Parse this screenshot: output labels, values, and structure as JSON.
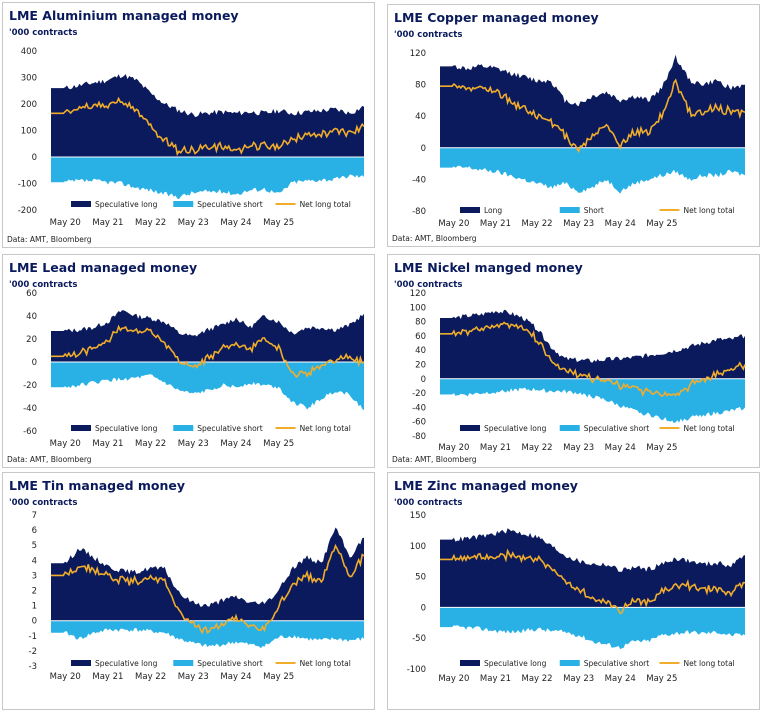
{
  "colors": {
    "long": "#0a1a5c",
    "short": "#29b1e6",
    "net": "#f0ac2c"
  },
  "x_labels": [
    "May 20",
    "May 21",
    "May 22",
    "May 23",
    "May 24",
    "May 25"
  ],
  "source": "Data: AMT, Bloomberg",
  "charts": [
    {
      "title": "LME Aluminium managed money",
      "unit": "'000 contracts",
      "source": "Data: AMT, Bloomberg",
      "legend": [
        "Speculative long",
        "Speculative short",
        "Net long total"
      ]
    },
    {
      "title": "LME Copper managed money",
      "unit": "'000 contracts",
      "source": "Data: AMT, Bloomberg",
      "legend": [
        "Long",
        "Short",
        "Net long total"
      ]
    },
    {
      "title": "LME Lead managed money",
      "unit": "'000 contracts",
      "source": "Data: AMT, Bloomberg",
      "legend": [
        "Speculative long",
        "Speculative short",
        "Net long total"
      ]
    },
    {
      "title": "LME Nickel manged money",
      "unit": "'000 contracts",
      "source": "Data: AMT, Bloomberg",
      "legend": [
        "Speculative long",
        "Speculative short",
        "Net long total"
      ]
    },
    {
      "title": "LME Tin managed money",
      "unit": "'000 contracts",
      "source": "",
      "legend": [
        "Speculative long",
        "Speculative short",
        "Net long total"
      ]
    },
    {
      "title": "LME Zinc managed money",
      "unit": "'000 contracts",
      "source": "",
      "legend": [
        "Speculative long",
        "Speculative short",
        "Net long total"
      ]
    }
  ],
  "chart_data": [
    {
      "type": "area",
      "title": "LME Aluminium managed money",
      "ylabel": "'000 contracts",
      "x": [
        "Mar 20",
        "May 20",
        "Aug 20",
        "Nov 20",
        "Feb 21",
        "May 21",
        "Aug 21",
        "Nov 21",
        "Feb 22",
        "May 22",
        "Aug 22",
        "Nov 22",
        "Feb 23",
        "May 23",
        "Aug 23",
        "Nov 23",
        "Feb 24",
        "May 24",
        "Aug 24",
        "Nov 24",
        "Feb 25",
        "May 25",
        "Aug 25"
      ],
      "ylim": [
        -200,
        400
      ],
      "yticks": [
        -200,
        -100,
        0,
        100,
        200,
        300,
        400
      ],
      "series": [
        {
          "name": "Speculative long",
          "values": [
            260,
            260,
            270,
            280,
            290,
            310,
            290,
            240,
            200,
            175,
            160,
            165,
            170,
            165,
            170,
            165,
            175,
            165,
            170,
            175,
            180,
            165,
            190
          ]
        },
        {
          "name": "Speculative short",
          "values": [
            -95,
            -95,
            -90,
            -90,
            -95,
            -100,
            -115,
            -125,
            -140,
            -150,
            -135,
            -130,
            -130,
            -140,
            -125,
            -120,
            -140,
            -95,
            -90,
            -85,
            -85,
            -70,
            -75
          ]
        },
        {
          "name": "Net long total",
          "values": [
            165,
            165,
            175,
            190,
            195,
            210,
            170,
            110,
            60,
            25,
            25,
            30,
            40,
            20,
            45,
            35,
            30,
            70,
            85,
            95,
            100,
            90,
            110
          ]
        }
      ]
    },
    {
      "type": "area",
      "title": "LME Copper managed money",
      "ylabel": "'000 contracts",
      "x": [
        "Mar 20",
        "May 20",
        "Aug 20",
        "Nov 20",
        "Feb 21",
        "May 21",
        "Aug 21",
        "Nov 21",
        "Feb 22",
        "May 22",
        "Aug 22",
        "Nov 22",
        "Feb 23",
        "May 23",
        "Aug 23",
        "Nov 23",
        "Feb 24",
        "May 24",
        "Aug 24",
        "Nov 24",
        "Feb 25",
        "May 25",
        "Aug 25"
      ],
      "ylim": [
        -80,
        120
      ],
      "yticks": [
        -80,
        -40,
        0,
        40,
        80,
        120
      ],
      "series": [
        {
          "name": "Long",
          "values": [
            103,
            103,
            100,
            103,
            100,
            95,
            90,
            85,
            85,
            60,
            55,
            65,
            70,
            60,
            65,
            60,
            75,
            115,
            85,
            80,
            85,
            75,
            80
          ]
        },
        {
          "name": "Short",
          "values": [
            -25,
            -25,
            -25,
            -28,
            -30,
            -35,
            -40,
            -45,
            -50,
            -45,
            -55,
            -50,
            -40,
            -55,
            -45,
            -40,
            -35,
            -30,
            -40,
            -35,
            -35,
            -30,
            -35
          ]
        },
        {
          "name": "Net long total",
          "values": [
            78,
            78,
            75,
            75,
            70,
            60,
            50,
            40,
            35,
            15,
            0,
            15,
            30,
            5,
            20,
            20,
            40,
            85,
            45,
            45,
            50,
            45,
            45
          ]
        }
      ]
    },
    {
      "type": "area",
      "title": "LME Lead managed money",
      "ylabel": "'000 contracts",
      "x": [
        "Mar 20",
        "May 20",
        "Aug 20",
        "Nov 20",
        "Feb 21",
        "May 21",
        "Aug 21",
        "Nov 21",
        "Feb 22",
        "May 22",
        "Aug 22",
        "Nov 22",
        "Feb 23",
        "May 23",
        "Aug 23",
        "Nov 23",
        "Feb 24",
        "May 24",
        "Aug 24",
        "Nov 24",
        "Feb 25",
        "May 25",
        "Aug 25"
      ],
      "ylim": [
        -60,
        60
      ],
      "yticks": [
        -60,
        -40,
        -20,
        0,
        20,
        40,
        60
      ],
      "series": [
        {
          "name": "Speculative long",
          "values": [
            27,
            27,
            28,
            30,
            35,
            45,
            40,
            38,
            35,
            25,
            22,
            28,
            32,
            38,
            30,
            40,
            35,
            25,
            30,
            30,
            28,
            32,
            42
          ]
        },
        {
          "name": "Speculative short",
          "values": [
            -22,
            -22,
            -20,
            -18,
            -16,
            -15,
            -14,
            -12,
            -18,
            -25,
            -28,
            -25,
            -20,
            -22,
            -18,
            -20,
            -22,
            -35,
            -40,
            -32,
            -25,
            -28,
            -42
          ]
        },
        {
          "name": "Net long total",
          "values": [
            5,
            5,
            8,
            12,
            18,
            30,
            25,
            26,
            18,
            0,
            -6,
            3,
            12,
            16,
            12,
            20,
            13,
            -10,
            -10,
            -2,
            3,
            4,
            0
          ]
        }
      ]
    },
    {
      "type": "area",
      "title": "LME Nickel manged money",
      "ylabel": "'000 contracts",
      "x": [
        "Mar 20",
        "May 20",
        "Aug 20",
        "Nov 20",
        "Feb 21",
        "May 21",
        "Aug 21",
        "Nov 21",
        "Feb 22",
        "May 22",
        "Aug 22",
        "Nov 22",
        "Feb 23",
        "May 23",
        "Aug 23",
        "Nov 23",
        "Feb 24",
        "May 24",
        "Aug 24",
        "Nov 24",
        "Feb 25",
        "May 25",
        "Aug 25"
      ],
      "ylim": [
        -80,
        120
      ],
      "yticks": [
        -80,
        -60,
        -40,
        -20,
        0,
        20,
        40,
        60,
        80,
        100,
        120
      ],
      "series": [
        {
          "name": "Speculative long",
          "values": [
            85,
            85,
            88,
            90,
            95,
            92,
            85,
            70,
            45,
            28,
            26,
            25,
            27,
            28,
            30,
            33,
            36,
            40,
            45,
            50,
            55,
            55,
            60
          ]
        },
        {
          "name": "Speculative short",
          "values": [
            -22,
            -22,
            -22,
            -20,
            -18,
            -16,
            -15,
            -15,
            -17,
            -18,
            -20,
            -25,
            -30,
            -38,
            -45,
            -50,
            -55,
            -60,
            -55,
            -50,
            -48,
            -45,
            -40
          ]
        },
        {
          "name": "Net long total",
          "values": [
            63,
            63,
            66,
            70,
            77,
            76,
            70,
            55,
            28,
            10,
            6,
            0,
            -3,
            -10,
            -15,
            -17,
            -19,
            -20,
            -10,
            0,
            7,
            10,
            20
          ]
        }
      ]
    },
    {
      "type": "area",
      "title": "LME Tin managed money",
      "ylabel": "'000 contracts",
      "x": [
        "Mar 20",
        "May 20",
        "Aug 20",
        "Nov 20",
        "Feb 21",
        "May 21",
        "Aug 21",
        "Nov 21",
        "Feb 22",
        "May 22",
        "Aug 22",
        "Nov 22",
        "Feb 23",
        "May 23",
        "Aug 23",
        "Nov 23",
        "Feb 24",
        "May 24",
        "Aug 24",
        "Nov 24",
        "Feb 25",
        "May 25",
        "Aug 25"
      ],
      "ylim": [
        -3,
        7
      ],
      "yticks": [
        -3,
        -2,
        -1,
        0,
        1,
        2,
        3,
        4,
        5,
        6,
        7
      ],
      "series": [
        {
          "name": "Speculative long",
          "values": [
            3.8,
            3.8,
            4.8,
            4.2,
            3.6,
            3.3,
            3.2,
            3.5,
            3.4,
            1.8,
            1.2,
            1.0,
            1.3,
            1.6,
            1.2,
            1.1,
            2.0,
            3.5,
            4.2,
            3.8,
            6.2,
            4.2,
            5.5
          ]
        },
        {
          "name": "Speculative short",
          "values": [
            -0.8,
            -0.8,
            -1.2,
            -0.8,
            -0.6,
            -0.6,
            -0.6,
            -0.7,
            -0.8,
            -1.2,
            -1.5,
            -1.7,
            -1.6,
            -1.4,
            -1.6,
            -1.7,
            -1.1,
            -1.0,
            -1.2,
            -1.3,
            -1.2,
            -1.3,
            -1.2
          ]
        },
        {
          "name": "Net long total",
          "values": [
            3.0,
            3.0,
            3.5,
            3.4,
            3.0,
            2.7,
            2.6,
            2.8,
            2.6,
            0.6,
            -0.3,
            -0.7,
            -0.3,
            0.2,
            -0.4,
            -0.6,
            0.9,
            2.5,
            3.0,
            2.5,
            5.0,
            2.9,
            4.3
          ]
        }
      ]
    },
    {
      "type": "area",
      "title": "LME Zinc managed money",
      "ylabel": "'000 contracts",
      "x": [
        "Mar 20",
        "May 20",
        "Aug 20",
        "Nov 20",
        "Feb 21",
        "May 21",
        "Aug 21",
        "Nov 21",
        "Feb 22",
        "May 22",
        "Aug 22",
        "Nov 22",
        "Feb 23",
        "May 23",
        "Aug 23",
        "Nov 23",
        "Feb 24",
        "May 24",
        "Aug 24",
        "Nov 24",
        "Feb 25",
        "May 25",
        "Aug 25"
      ],
      "ylim": [
        -100,
        150
      ],
      "yticks": [
        -100,
        -50,
        0,
        50,
        100,
        150
      ],
      "series": [
        {
          "name": "Speculative long",
          "values": [
            110,
            110,
            112,
            115,
            120,
            125,
            120,
            115,
            100,
            85,
            75,
            70,
            70,
            60,
            65,
            62,
            70,
            80,
            75,
            70,
            72,
            68,
            85
          ]
        },
        {
          "name": "Speculative short",
          "values": [
            -32,
            -32,
            -33,
            -35,
            -38,
            -40,
            -38,
            -35,
            -38,
            -40,
            -45,
            -55,
            -60,
            -65,
            -55,
            -55,
            -45,
            -42,
            -40,
            -42,
            -40,
            -45,
            -45
          ]
        },
        {
          "name": "Net long total",
          "values": [
            78,
            78,
            79,
            80,
            82,
            85,
            82,
            80,
            62,
            45,
            30,
            15,
            10,
            -5,
            10,
            7,
            25,
            38,
            35,
            28,
            32,
            23,
            40
          ]
        }
      ]
    }
  ]
}
